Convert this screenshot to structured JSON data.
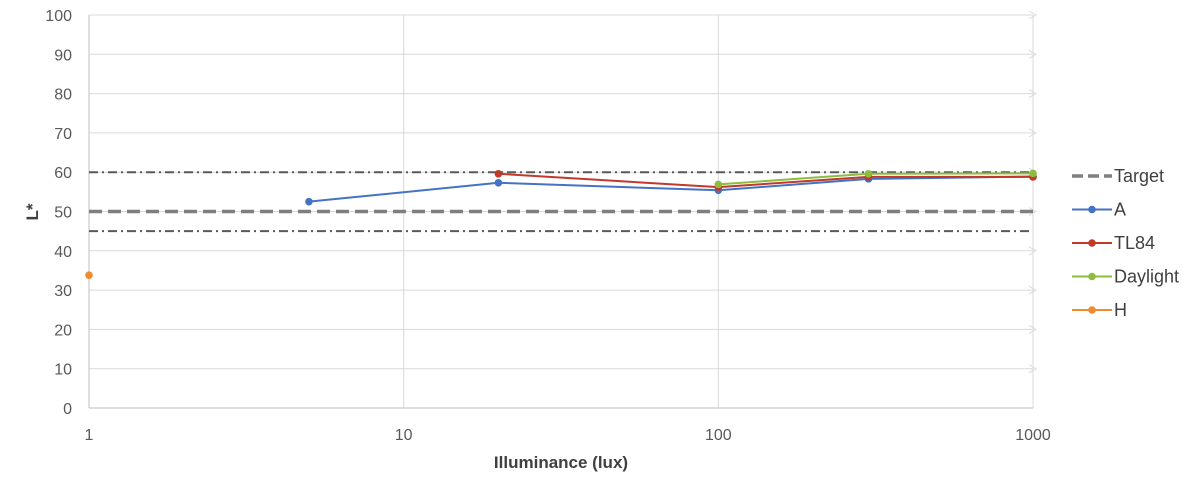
{
  "chart_data": {
    "type": "line",
    "xscale": "log",
    "xlabel": "Illuminance (lux)",
    "ylabel": "L*",
    "xlim": [
      1,
      1000
    ],
    "ylim": [
      0,
      100
    ],
    "x_ticks": [
      "1",
      "10",
      "100",
      "1000"
    ],
    "y_ticks": [
      "0",
      "10",
      "20",
      "30",
      "40",
      "50",
      "60",
      "70",
      "80",
      "90",
      "100"
    ],
    "grid": true,
    "legend_position": "right",
    "reference_lines": [
      {
        "name": "Target",
        "y": 50,
        "style": "dashed",
        "color": "#7f7f7f",
        "in_legend": true
      },
      {
        "y": 60,
        "style": "dash-dot",
        "color": "#595959",
        "in_legend": false
      },
      {
        "y": 45,
        "style": "dash-dot",
        "color": "#595959",
        "in_legend": false
      }
    ],
    "series": [
      {
        "name": "A",
        "color": "#4472c4",
        "points": [
          [
            5,
            52.5
          ],
          [
            20,
            57.3
          ],
          [
            100,
            55.4
          ],
          [
            300,
            58.3
          ],
          [
            1000,
            58.9
          ]
        ]
      },
      {
        "name": "TL84",
        "color": "#c0392b",
        "points": [
          [
            20,
            59.6
          ],
          [
            100,
            56.2
          ],
          [
            300,
            58.8
          ],
          [
            1000,
            58.8
          ]
        ]
      },
      {
        "name": "Daylight",
        "color": "#8cbd3f",
        "points": [
          [
            100,
            56.9
          ],
          [
            300,
            59.6
          ],
          [
            1000,
            59.7
          ]
        ]
      },
      {
        "name": "H",
        "color": "#ed8b2e",
        "points": [
          [
            1,
            33.8
          ]
        ]
      }
    ]
  }
}
